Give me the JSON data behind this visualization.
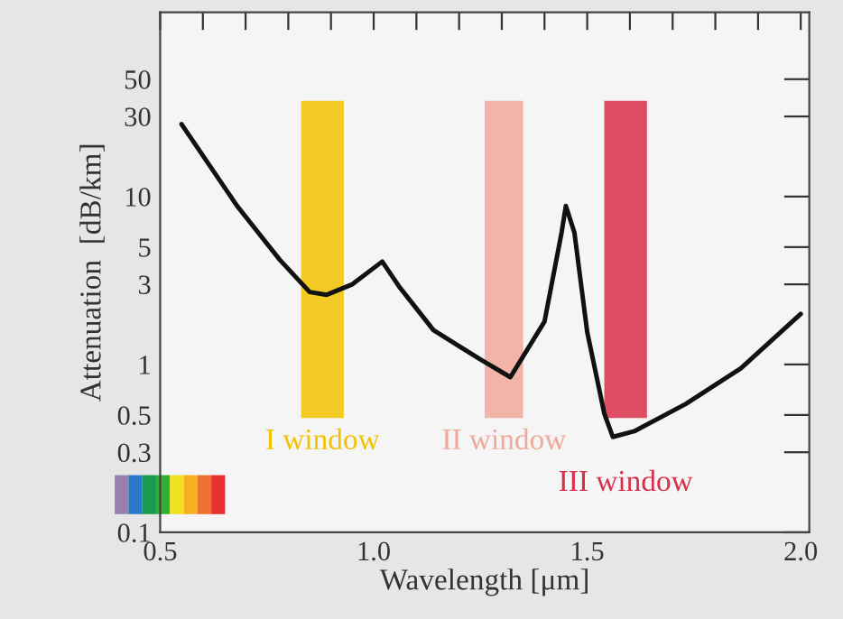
{
  "chart_data": {
    "type": "line",
    "xlabel": "Wavelength [μm]",
    "ylabel": "Attenuation  [dB/km]",
    "x": [
      0.55,
      0.68,
      0.78,
      0.85,
      0.89,
      0.95,
      1.02,
      1.06,
      1.14,
      1.25,
      1.32,
      1.4,
      1.44,
      1.45,
      1.47,
      1.5,
      1.54,
      1.56,
      1.61,
      1.73,
      1.86,
      2.0
    ],
    "series": [
      {
        "color": "#111111",
        "values": [
          27,
          8.8,
          4.2,
          2.7,
          2.6,
          3.0,
          4.1,
          2.9,
          1.6,
          1.07,
          0.84,
          1.8,
          6.1,
          8.8,
          6.1,
          1.56,
          0.51,
          0.37,
          0.4,
          0.58,
          0.95,
          2.0
        ]
      }
    ],
    "log": "y",
    "xlim": [
      0.5,
      2.02
    ],
    "ylim": [
      0.1,
      125
    ],
    "xticks": [
      {
        "value": 0.5,
        "label": "0.5"
      },
      {
        "value": 0.6,
        "label": null
      },
      {
        "value": 0.7,
        "label": null
      },
      {
        "value": 0.8,
        "label": null
      },
      {
        "value": 0.9,
        "label": null
      },
      {
        "value": 1.0,
        "label": "1.0"
      },
      {
        "value": 1.1,
        "label": null
      },
      {
        "value": 1.2,
        "label": null
      },
      {
        "value": 1.3,
        "label": null
      },
      {
        "value": 1.4,
        "label": null
      },
      {
        "value": 1.5,
        "label": "1.5"
      },
      {
        "value": 1.6,
        "label": null
      },
      {
        "value": 1.7,
        "label": null
      },
      {
        "value": 1.8,
        "label": null
      },
      {
        "value": 1.9,
        "label": null
      },
      {
        "value": 2.0,
        "label": "2.0"
      }
    ],
    "yticks": [
      0.1,
      0.3,
      0.5,
      1,
      3,
      5,
      10,
      30,
      50
    ],
    "bands": [
      {
        "axis": "x",
        "from": 0.83,
        "to": 0.93,
        "label": "I window",
        "color": "#f2c200"
      },
      {
        "axis": "x",
        "from": 1.26,
        "to": 1.35,
        "label": "II window",
        "color": "#f0a898"
      },
      {
        "axis": "x",
        "from": 1.54,
        "to": 1.64,
        "label": "III window",
        "color": "#d8304a"
      }
    ],
    "grid": false,
    "legend": false,
    "line_style": "solid",
    "marker": "none"
  }
}
